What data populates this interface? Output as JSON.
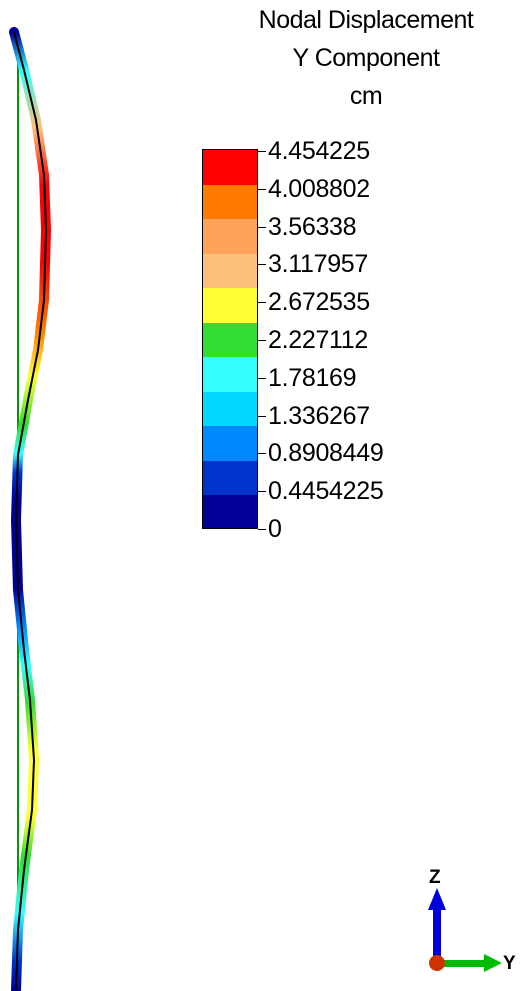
{
  "title": {
    "line1": "Nodal Displacement",
    "line2": "Y Component",
    "line3": "cm"
  },
  "legend": {
    "labels": [
      "4.454225",
      "4.008802",
      "3.56338",
      "3.117957",
      "2.672535",
      "2.227112",
      "1.78169",
      "1.336267",
      "0.8908449",
      "0.4454225",
      "0"
    ],
    "colors": [
      "#ff0000",
      "#ff7a00",
      "#ffa25a",
      "#ffc07a",
      "#ffff33",
      "#33dd33",
      "#33ffff",
      "#00d8ff",
      "#0088ff",
      "#0033cc",
      "#000099"
    ]
  },
  "triad": {
    "z_label": "Z",
    "y_label": "Y",
    "z_color": "#0000dd",
    "y_color": "#00bb00",
    "origin_color": "#cc3300"
  }
}
